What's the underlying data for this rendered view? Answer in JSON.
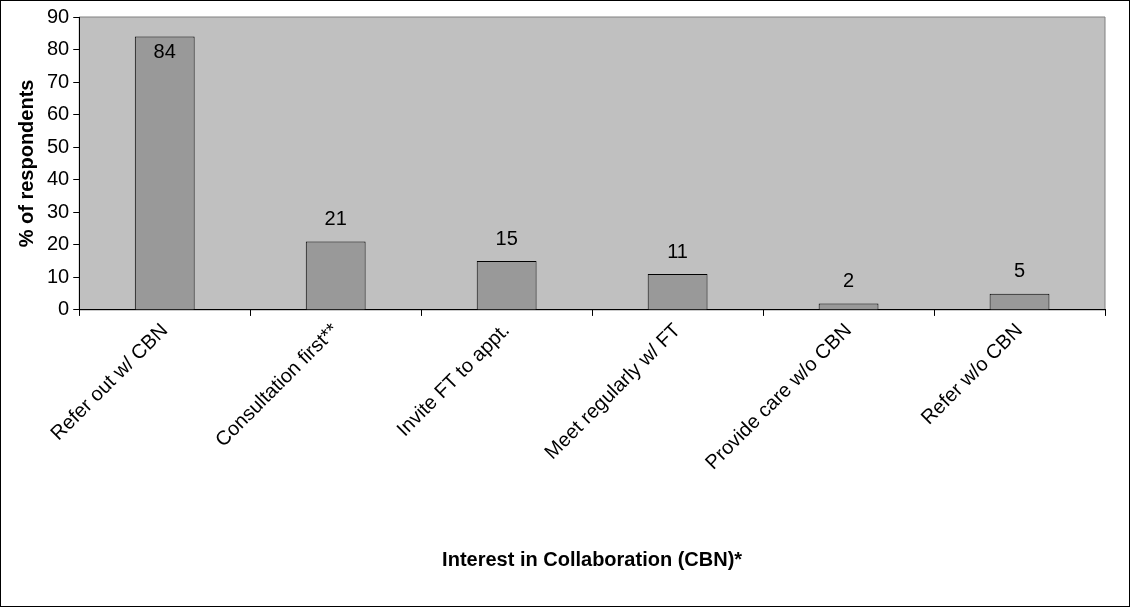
{
  "chart_data": {
    "type": "bar",
    "xlabel": "Interest in Collaboration (CBN)*",
    "ylabel": "% of respondents",
    "categories": [
      "Refer out w/ CBN",
      "Consultation first**",
      "Invite FT to appt.",
      "Meet regularly w/ FT",
      "Provide care w/o CBN",
      "Refer w/o CBN"
    ],
    "values": [
      84,
      21,
      15,
      11,
      2,
      5
    ],
    "color": "#999999",
    "ylim": [
      0,
      90
    ],
    "yticks": [
      0,
      10,
      20,
      30,
      40,
      50,
      60,
      70,
      80,
      90
    ],
    "grid": false,
    "legend": false,
    "data_labels": true
  }
}
